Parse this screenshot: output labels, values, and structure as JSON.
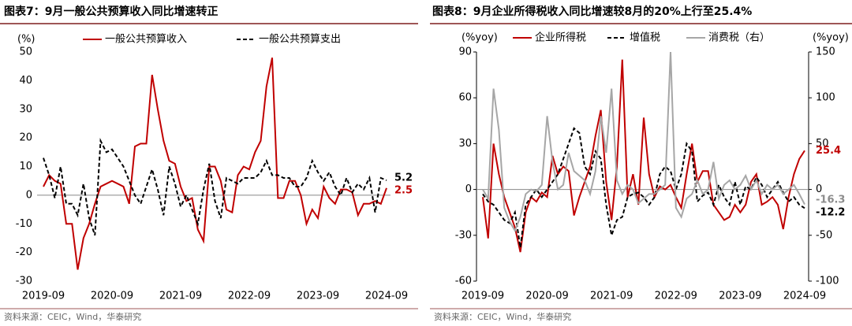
{
  "chart_data": [
    {
      "type": "line",
      "title": "图表7：9月一般公共预算收入同比增速转正",
      "ylabel": "(%)",
      "source": "资料来源：CEIC，Wind，华泰研究",
      "categories": [
        "2019-09",
        null,
        null,
        null,
        null,
        null,
        null,
        null,
        null,
        null,
        null,
        null,
        "2020-09",
        null,
        null,
        null,
        null,
        null,
        null,
        null,
        null,
        null,
        null,
        null,
        "2021-09",
        null,
        null,
        null,
        null,
        null,
        null,
        null,
        null,
        null,
        null,
        null,
        "2022-09",
        null,
        null,
        null,
        null,
        null,
        null,
        null,
        null,
        null,
        null,
        null,
        "2023-09",
        null,
        null,
        null,
        null,
        null,
        null,
        null,
        null,
        null,
        null,
        null,
        "2024-09"
      ],
      "ylim": [
        -30,
        50
      ],
      "yticks": [
        -30,
        -20,
        -10,
        0,
        10,
        20,
        30,
        40,
        50
      ],
      "zero_line": true,
      "label_last": true,
      "series": [
        {
          "name": "一般公共预算收入",
          "color": "#c00000",
          "line_style": "solid",
          "values": [
            3,
            7,
            5,
            4,
            -10,
            -10,
            -26,
            -15,
            -10,
            -3,
            3,
            4,
            5,
            4,
            3,
            -3,
            17,
            18,
            18,
            42,
            30,
            19,
            12,
            11,
            3,
            -2,
            -1,
            -12,
            -16,
            10,
            10,
            5,
            -5,
            -6,
            7,
            10,
            9,
            15,
            19,
            38,
            48,
            -1,
            -1,
            5,
            5,
            0,
            -10,
            -5,
            -8,
            3,
            -1,
            -3,
            2,
            2,
            1,
            -7,
            -3,
            -3,
            -2,
            -3,
            2.5
          ]
        },
        {
          "name": "一般公共预算支出",
          "color": "#000000",
          "line_style": "dashed",
          "values": [
            13,
            7,
            -1,
            10,
            -3,
            -3,
            -7,
            4,
            -8,
            -14,
            19,
            15,
            16,
            13,
            10,
            5,
            0,
            -3,
            3,
            9,
            2,
            -7,
            10,
            4,
            -4,
            0,
            -5,
            -10,
            2,
            11,
            -2,
            -8,
            6,
            5,
            4,
            6,
            6,
            6,
            8,
            12,
            7,
            7,
            6,
            6,
            3,
            3,
            6,
            12,
            8,
            5,
            8,
            3,
            0,
            6,
            1,
            4,
            2,
            6,
            -6,
            6,
            5.2
          ]
        }
      ]
    },
    {
      "type": "line",
      "title": "图表8：9月企业所得税收入同比增速较8月的20%上行至25.4%",
      "ylabel": "(%yoy)",
      "y2label": "(%yoy)",
      "source": "资料来源：CEIC，Wind，华泰研究",
      "categories": [
        "2019-09",
        null,
        null,
        null,
        null,
        null,
        null,
        null,
        null,
        null,
        null,
        null,
        "2020-09",
        null,
        null,
        null,
        null,
        null,
        null,
        null,
        null,
        null,
        null,
        null,
        "2021-09",
        null,
        null,
        null,
        null,
        null,
        null,
        null,
        null,
        null,
        null,
        null,
        "2022-09",
        null,
        null,
        null,
        null,
        null,
        null,
        null,
        null,
        null,
        null,
        null,
        "2023-09",
        null,
        null,
        null,
        null,
        null,
        null,
        null,
        null,
        null,
        null,
        null,
        "2024-09"
      ],
      "ylim": [
        -60,
        90
      ],
      "yticks": [
        -60,
        -30,
        0,
        30,
        60,
        90
      ],
      "y2lim": [
        -100,
        150
      ],
      "y2ticks": [
        -100,
        -50,
        0,
        50,
        100,
        150
      ],
      "zero_line": true,
      "label_last": true,
      "series": [
        {
          "name": "企业所得税",
          "color": "#c00000",
          "line_style": "solid",
          "values": [
            -5,
            -32,
            30,
            10,
            -5,
            -15,
            -25,
            -41,
            -15,
            -5,
            -8,
            -2,
            -5,
            22,
            10,
            15,
            12,
            -17,
            -5,
            5,
            15,
            35,
            52,
            5,
            -20,
            15,
            85,
            -5,
            10,
            -10,
            47,
            10,
            -5,
            2,
            0,
            3,
            -5,
            -12,
            10,
            30,
            5,
            12,
            12,
            -10,
            -15,
            -20,
            -18,
            -10,
            -15,
            -10,
            5,
            10,
            -10,
            -8,
            -5,
            -10,
            -26,
            -5,
            10,
            20,
            25.4
          ]
        },
        {
          "name": "增值税",
          "color": "#000000",
          "line_style": "dashed",
          "values": [
            -3,
            -8,
            -10,
            -15,
            -20,
            -22,
            -15,
            -38,
            -10,
            -5,
            0,
            -5,
            0,
            5,
            10,
            20,
            30,
            40,
            37,
            15,
            10,
            25,
            20,
            -10,
            -30,
            -20,
            -18,
            -5,
            -3,
            -2,
            -5,
            -10,
            -5,
            10,
            15,
            12,
            0,
            10,
            30,
            25,
            -8,
            -4,
            -2,
            -10,
            3,
            -5,
            -10,
            5,
            -10,
            2,
            0,
            8,
            3,
            -5,
            0,
            5,
            -2,
            -8,
            -5,
            -10,
            -12.2
          ]
        },
        {
          "name": "消费税（右）",
          "color": "#a6a6a6",
          "line_style": "solid",
          "axis": "y2",
          "values": [
            0,
            -10,
            110,
            65,
            -20,
            -35,
            -45,
            -30,
            -5,
            0,
            -2,
            5,
            80,
            30,
            0,
            5,
            40,
            20,
            15,
            10,
            -5,
            20,
            80,
            40,
            110,
            10,
            -5,
            5,
            0,
            -15,
            -10,
            -5,
            -5,
            0,
            5,
            150,
            -20,
            -30,
            -10,
            -5,
            10,
            -5,
            0,
            30,
            -10,
            5,
            10,
            0,
            5,
            15,
            0,
            10,
            -5,
            5,
            0,
            5,
            -5,
            0,
            5,
            -5,
            -16.3
          ]
        }
      ]
    }
  ]
}
